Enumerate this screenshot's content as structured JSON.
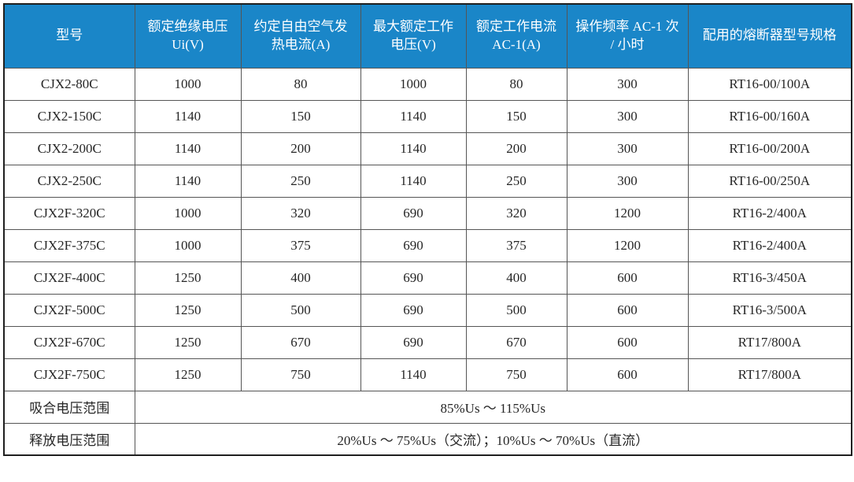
{
  "colors": {
    "header_background": "#1a86c8",
    "header_text": "#ffffff",
    "body_text": "#262626",
    "grid_border": "#555555",
    "outer_border": "#1f1f1f"
  },
  "table": {
    "columns": [
      "型号",
      "额定绝缘电压 Ui(V)",
      "约定自由空气发热电流(A)",
      "最大额定工作电压(V)",
      "额定工作电流 AC-1(A)",
      "操作频率 AC-1 次 / 小时",
      "配用的熔断器型号规格"
    ],
    "rows": [
      [
        "CJX2-80C",
        "1000",
        "80",
        "1000",
        "80",
        "300",
        "RT16-00/100A"
      ],
      [
        "CJX2-150C",
        "1140",
        "150",
        "1140",
        "150",
        "300",
        "RT16-00/160A"
      ],
      [
        "CJX2-200C",
        "1140",
        "200",
        "1140",
        "200",
        "300",
        "RT16-00/200A"
      ],
      [
        "CJX2-250C",
        "1140",
        "250",
        "1140",
        "250",
        "300",
        "RT16-00/250A"
      ],
      [
        "CJX2F-320C",
        "1000",
        "320",
        "690",
        "320",
        "1200",
        "RT16-2/400A"
      ],
      [
        "CJX2F-375C",
        "1000",
        "375",
        "690",
        "375",
        "1200",
        "RT16-2/400A"
      ],
      [
        "CJX2F-400C",
        "1250",
        "400",
        "690",
        "400",
        "600",
        "RT16-3/450A"
      ],
      [
        "CJX2F-500C",
        "1250",
        "500",
        "690",
        "500",
        "600",
        "RT16-3/500A"
      ],
      [
        "CJX2F-670C",
        "1250",
        "670",
        "690",
        "670",
        "600",
        "RT17/800A"
      ],
      [
        "CJX2F-750C",
        "1250",
        "750",
        "1140",
        "750",
        "600",
        "RT17/800A"
      ]
    ],
    "footer_rows": [
      {
        "label": "吸合电压范围",
        "value": "85%Us ～ 115%Us"
      },
      {
        "label": "释放电压范围",
        "value": "20%Us ～ 75%Us（交流）；10%Us ～ 70%Us（直流）"
      }
    ]
  }
}
